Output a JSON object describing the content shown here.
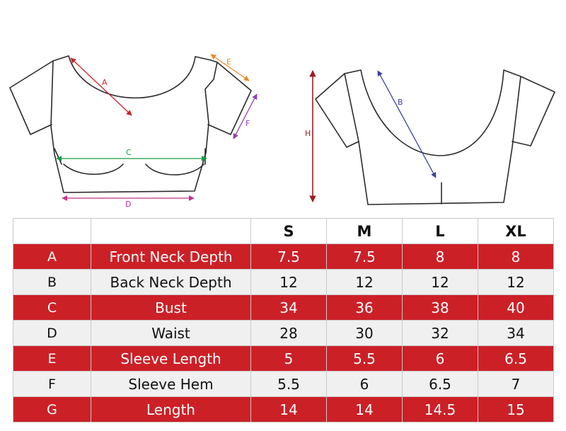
{
  "diagram": {
    "front": {
      "A": {
        "label": "A",
        "color": "#cc2027"
      },
      "C": {
        "label": "C",
        "color": "#1a9c3e"
      },
      "D": {
        "label": "D",
        "color": "#c0308f"
      },
      "E": {
        "label": "E",
        "color": "#e68a2e"
      },
      "F": {
        "label": "F",
        "color": "#8e3fa8"
      }
    },
    "back": {
      "B": {
        "label": "B",
        "color": "#3d3fa0"
      },
      "H": {
        "label": "H",
        "color": "#9b1c22"
      }
    }
  },
  "table": {
    "headers": [
      "",
      "",
      "S",
      "M",
      "L",
      "XL"
    ],
    "rows": [
      {
        "code": "A",
        "name": "Front Neck Depth",
        "values": [
          "7.5",
          "7.5",
          "8",
          "8"
        ]
      },
      {
        "code": "B",
        "name": "Back Neck Depth",
        "values": [
          "12",
          "12",
          "12",
          "12"
        ]
      },
      {
        "code": "C",
        "name": "Bust",
        "values": [
          "34",
          "36",
          "38",
          "40"
        ]
      },
      {
        "code": "D",
        "name": "Waist",
        "values": [
          "28",
          "30",
          "32",
          "34"
        ]
      },
      {
        "code": "E",
        "name": "Sleeve Length",
        "values": [
          "5",
          "5.5",
          "6",
          "6.5"
        ]
      },
      {
        "code": "F",
        "name": "Sleeve Hem",
        "values": [
          "5.5",
          "6",
          "6.5",
          "7"
        ]
      },
      {
        "code": "G",
        "name": "Length",
        "values": [
          "14",
          "14",
          "14.5",
          "15"
        ]
      }
    ]
  },
  "colors": {
    "accent_row": "#cc2027",
    "alt_row": "#f0f0f0"
  }
}
